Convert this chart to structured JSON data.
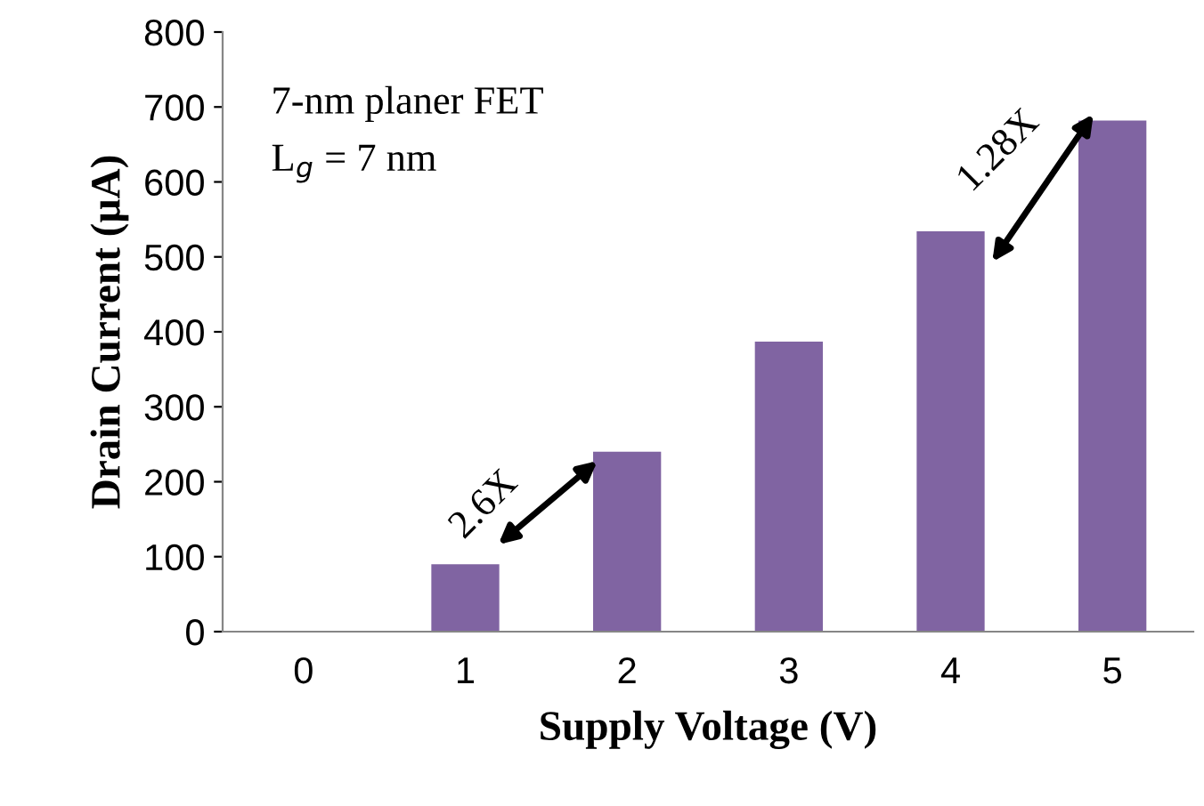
{
  "chart_data": {
    "type": "bar",
    "xlabel": "Supply Voltage (V)",
    "ylabel": "Drain Current (µA)",
    "categories": [
      "0",
      "1",
      "2",
      "3",
      "4",
      "5"
    ],
    "values": [
      0,
      90,
      240,
      387,
      534,
      682
    ],
    "color": "#8064a2",
    "ylim": [
      0,
      800
    ],
    "yticks": [
      0,
      100,
      200,
      300,
      400,
      500,
      600,
      700,
      800
    ],
    "grid": false,
    "annotations": [
      "7-nm planer FET",
      "L$_{g}$ = 7 nm",
      "2.6X",
      "1.28X"
    ]
  }
}
